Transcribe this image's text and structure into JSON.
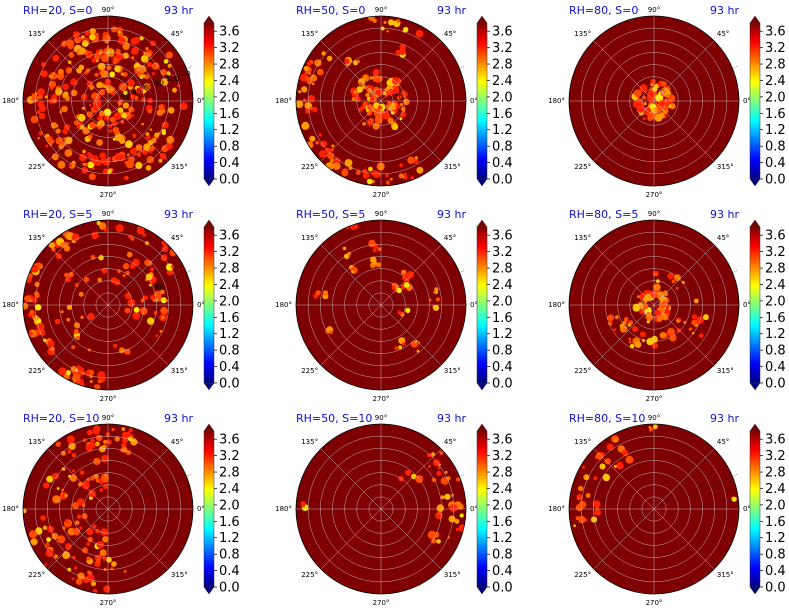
{
  "colors": {
    "background": "#7f0000",
    "title": "#1010d0",
    "grid": "#d8d8d8"
  },
  "chart_data": {
    "type": "heatmap",
    "projection": "polar",
    "colormap": "jet",
    "time_label": "93 hr",
    "angle_ticks": [
      "90°",
      "45°",
      "0°",
      "315°",
      "270°",
      "225°",
      "180°",
      "135°"
    ],
    "radial_ticks": [
      "20",
      "40",
      "60",
      "80",
      "100",
      "120"
    ],
    "colorbar_ticks": [
      "0.0",
      "0.4",
      "0.8",
      "1.2",
      "1.6",
      "2.0",
      "2.4",
      "2.8",
      "3.2",
      "3.6"
    ],
    "clim": [
      0,
      3.8
    ],
    "panels": [
      {
        "title": "RH=20, S=0",
        "radial_labels": [
          "20",
          "40",
          "60",
          "80",
          "100",
          "120"
        ],
        "pattern": "broad-spiral"
      },
      {
        "title": "RH=50, S=0",
        "radial_labels": [
          "20"
        ],
        "pattern": "core-ring"
      },
      {
        "title": "RH=80, S=0",
        "radial_labels": [],
        "pattern": "small-core"
      },
      {
        "title": "RH=20, S=5",
        "radial_labels": [
          "80"
        ],
        "pattern": "outer-bands"
      },
      {
        "title": "RH=50, S=5",
        "radial_labels": [],
        "pattern": "sparse"
      },
      {
        "title": "RH=80, S=5",
        "radial_labels": [],
        "pattern": "core-ring-bands"
      },
      {
        "title": "RH=20, S=10",
        "radial_labels": [],
        "pattern": "left-half"
      },
      {
        "title": "RH=50, S=10",
        "radial_labels": [],
        "pattern": "right-edge"
      },
      {
        "title": "RH=80, S=10",
        "radial_labels": [],
        "pattern": "upper-left"
      }
    ]
  }
}
